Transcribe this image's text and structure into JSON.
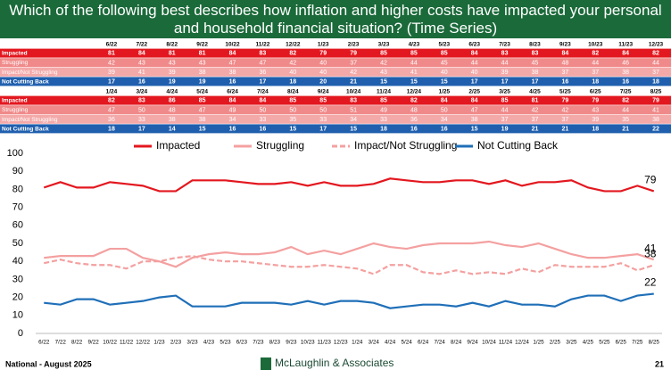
{
  "header": {
    "title": "Which of the following best describes how inflation and higher costs have impacted your personal and household financial situation? (Time Series)"
  },
  "tables": [
    {
      "columns": [
        "6/22",
        "7/22",
        "8/22",
        "9/22",
        "10/22",
        "11/22",
        "12/22",
        "1/23",
        "2/23",
        "3/23",
        "4/23",
        "5/23",
        "6/23",
        "7/23",
        "8/23",
        "9/23",
        "10/23",
        "11/23",
        "12/23"
      ],
      "rows": [
        {
          "label": "Impacted",
          "values": [
            81,
            84,
            81,
            81,
            84,
            83,
            82,
            79,
            79,
            85,
            85,
            85,
            84,
            83,
            83,
            84,
            82,
            84,
            82
          ]
        },
        {
          "label": "Struggling",
          "values": [
            42,
            43,
            43,
            43,
            47,
            47,
            42,
            40,
            37,
            42,
            44,
            45,
            44,
            44,
            45,
            48,
            44,
            46,
            44
          ]
        },
        {
          "label": "Impact/Not Struggling",
          "values": [
            39,
            41,
            39,
            38,
            38,
            36,
            40,
            40,
            42,
            43,
            41,
            40,
            40,
            39,
            38,
            37,
            37,
            38,
            37
          ]
        },
        {
          "label": "Not Cutting Back",
          "values": [
            17,
            16,
            19,
            19,
            16,
            17,
            18,
            20,
            21,
            15,
            15,
            15,
            17,
            17,
            17,
            16,
            18,
            16,
            18
          ]
        }
      ]
    },
    {
      "columns": [
        "1/24",
        "3/24",
        "4/24",
        "5/24",
        "6/24",
        "7/24",
        "8/24",
        "9/24",
        "10/24",
        "11/24",
        "12/24",
        "1/25",
        "2/25",
        "3/25",
        "4/25",
        "5/25",
        "6/25",
        "7/25",
        "8/25"
      ],
      "rows": [
        {
          "label": "Impacted",
          "values": [
            82,
            83,
            86,
            85,
            84,
            84,
            85,
            85,
            83,
            85,
            82,
            84,
            84,
            85,
            81,
            79,
            79,
            82,
            79
          ]
        },
        {
          "label": "Struggling",
          "values": [
            47,
            50,
            48,
            47,
            49,
            50,
            50,
            50,
            51,
            49,
            48,
            50,
            47,
            44,
            42,
            42,
            43,
            44,
            41
          ]
        },
        {
          "label": "Impact/Not Struggling",
          "values": [
            36,
            33,
            38,
            38,
            34,
            33,
            35,
            33,
            34,
            33,
            36,
            34,
            38,
            37,
            37,
            37,
            39,
            35,
            38
          ]
        },
        {
          "label": "Not Cutting Back",
          "values": [
            18,
            17,
            14,
            15,
            16,
            16,
            15,
            17,
            15,
            18,
            16,
            16,
            15,
            19,
            21,
            21,
            18,
            21,
            22
          ]
        }
      ]
    }
  ],
  "chart_data": {
    "type": "line",
    "categories": [
      "6/22",
      "7/22",
      "8/22",
      "9/22",
      "10/22",
      "11/22",
      "12/22",
      "1/23",
      "2/23",
      "3/23",
      "4/23",
      "5/23",
      "6/23",
      "7/23",
      "8/23",
      "9/23",
      "10/23",
      "11/23",
      "12/23",
      "1/24",
      "3/24",
      "4/24",
      "5/24",
      "6/24",
      "7/24",
      "8/24",
      "9/24",
      "10/24",
      "11/24",
      "12/24",
      "1/25",
      "2/25",
      "3/25",
      "4/25",
      "5/25",
      "6/25",
      "7/25",
      "8/25"
    ],
    "series": [
      {
        "name": "Impacted",
        "color": "#e3171f",
        "dash": false,
        "values": [
          81,
          84,
          81,
          81,
          84,
          83,
          82,
          79,
          79,
          85,
          85,
          85,
          84,
          83,
          83,
          84,
          82,
          84,
          82,
          82,
          83,
          86,
          85,
          84,
          84,
          85,
          85,
          83,
          85,
          82,
          84,
          84,
          85,
          81,
          79,
          79,
          82,
          79
        ],
        "end_label": 79
      },
      {
        "name": "Struggling",
        "color": "#f4a0a0",
        "dash": false,
        "values": [
          42,
          43,
          43,
          43,
          47,
          47,
          42,
          40,
          37,
          42,
          44,
          45,
          44,
          44,
          45,
          48,
          44,
          46,
          44,
          47,
          50,
          48,
          47,
          49,
          50,
          50,
          50,
          51,
          49,
          48,
          50,
          47,
          44,
          42,
          42,
          43,
          44,
          41
        ],
        "end_label": 41
      },
      {
        "name": "Impact/Not Struggling",
        "color": "#f4a0a0",
        "dash": true,
        "values": [
          39,
          41,
          39,
          38,
          38,
          36,
          40,
          40,
          42,
          43,
          41,
          40,
          40,
          39,
          38,
          37,
          37,
          38,
          37,
          36,
          33,
          38,
          38,
          34,
          33,
          35,
          33,
          34,
          33,
          36,
          34,
          38,
          37,
          37,
          37,
          39,
          35,
          38
        ],
        "end_label": 38
      },
      {
        "name": "Not Cutting Back",
        "color": "#1f6fb8",
        "dash": false,
        "values": [
          17,
          16,
          19,
          19,
          16,
          17,
          18,
          20,
          21,
          15,
          15,
          15,
          17,
          17,
          17,
          16,
          18,
          16,
          18,
          18,
          17,
          14,
          15,
          16,
          16,
          15,
          17,
          15,
          18,
          16,
          16,
          15,
          19,
          21,
          21,
          18,
          21,
          22
        ],
        "end_label": 22
      }
    ],
    "ylim": [
      0,
      100
    ],
    "yticks": [
      0,
      10,
      20,
      30,
      40,
      50,
      60,
      70,
      80,
      90,
      100
    ],
    "grid": false,
    "legend": "top"
  },
  "footer": {
    "left": "National - August 2025",
    "logo": "McLaughlin & Associates",
    "page": "21"
  }
}
